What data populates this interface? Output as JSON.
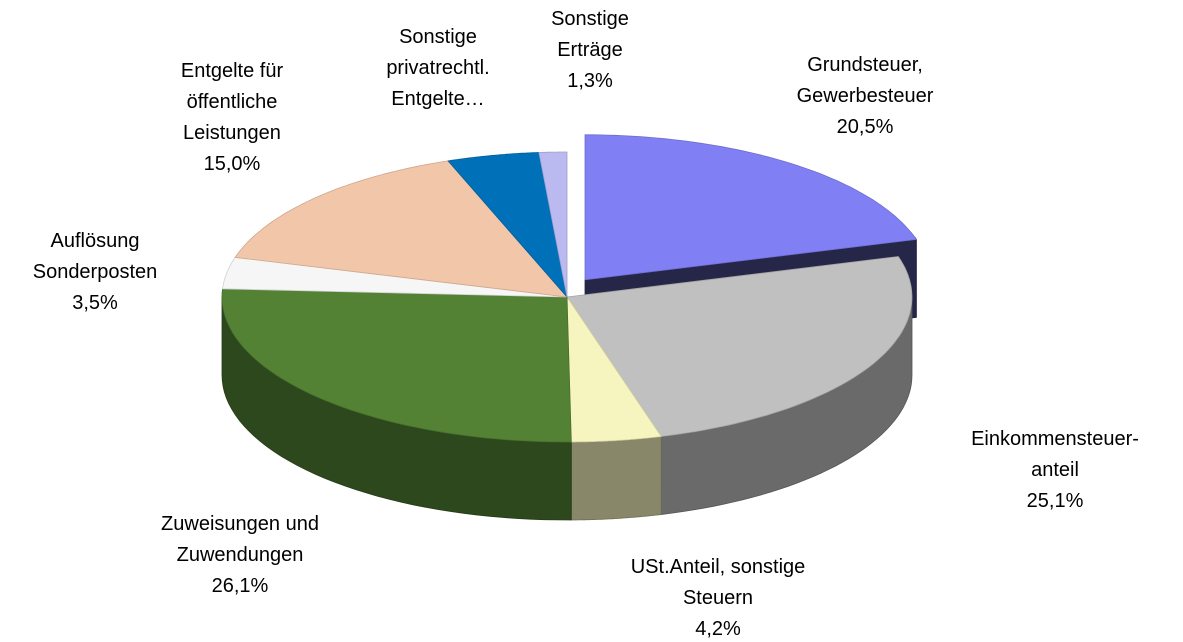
{
  "chart_data": {
    "type": "pie3d",
    "categories": [
      "Grundsteuer,\nGewerbesteuer",
      "Einkommensteuer-\nanteil",
      "USt.Anteil, sonstige\nSteuern",
      "Zuweisungen und\nZuwendungen",
      "Auflösung\nSonderposten",
      "Entgelte für\nöffentliche\nLeistungen",
      "Sonstige\nprivatrechtl.\nEntgelte…",
      "Sonstige\nErträge"
    ],
    "values": [
      20.5,
      25.1,
      4.2,
      26.1,
      3.5,
      15.0,
      4.3,
      1.3
    ],
    "value_labels": [
      "20,5%",
      "25,1%",
      "4,2%",
      "26,1%",
      "3,5%",
      "15,0%",
      null,
      "1,3%"
    ],
    "colors": [
      "#8080f4",
      "#c0c0c0",
      "#f7f5bf",
      "#548235",
      "#f6f6f6",
      "#f2c6a8",
      "#0070b8",
      "#babaf0"
    ],
    "exploded": [
      0
    ]
  }
}
